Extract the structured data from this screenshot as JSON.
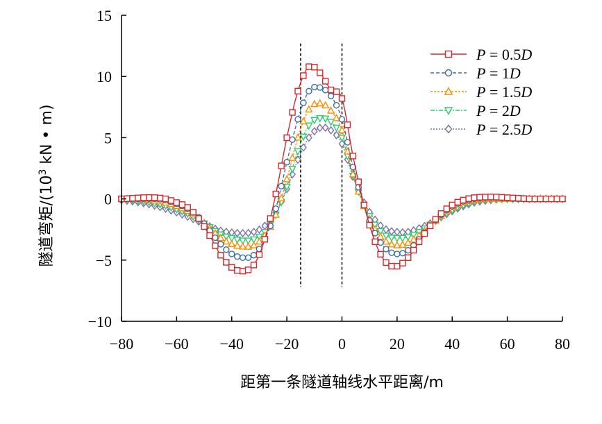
{
  "chart_data": {
    "type": "line",
    "title": "",
    "xlabel": "距第一条隧道轴线水平距离/m",
    "ylabel_main": "隧道弯矩/(10",
    "ylabel_sup": "3",
    "ylabel_tail": " kN • m)",
    "xlim": [
      -80,
      80
    ],
    "ylim": [
      -10,
      15
    ],
    "xticks": [
      -80,
      -60,
      -40,
      -20,
      0,
      20,
      40,
      60,
      80
    ],
    "yticks": [
      -10,
      -5,
      0,
      5,
      10,
      15
    ],
    "xtick_labels": [
      "−80",
      "−60",
      "−40",
      "−20",
      "0",
      "20",
      "40",
      "60",
      "80"
    ],
    "ytick_labels": [
      "−10",
      "−5",
      "0",
      "5",
      "10",
      "15"
    ],
    "vlines": [
      -15,
      0
    ],
    "legend_position": "top-right",
    "grid": false,
    "x": [
      -80,
      -76,
      -72,
      -68,
      -64,
      -60,
      -56,
      -52,
      -48,
      -44,
      -40,
      -36,
      -32,
      -28,
      -24,
      -20,
      -16,
      -12,
      -8,
      -4,
      0,
      4,
      8,
      12,
      16,
      20,
      24,
      28,
      32,
      36,
      40,
      44,
      48,
      52,
      56,
      60,
      64,
      68,
      72,
      76,
      80
    ],
    "series": [
      {
        "name_pre": "P",
        "name_post": " = 0.5",
        "name_unit": "D",
        "color": "#d62728",
        "marker": "square",
        "dash": "",
        "values": [
          0,
          0.05,
          0.1,
          0.1,
          0,
          -0.3,
          -0.7,
          -1.6,
          -3.0,
          -4.6,
          -5.6,
          -5.9,
          -5.4,
          -3.3,
          0.4,
          5.0,
          8.8,
          10.8,
          10.3,
          8.9,
          8.2,
          3.5,
          -0.5,
          -3.5,
          -5.2,
          -5.5,
          -4.8,
          -3.5,
          -2.2,
          -1.2,
          -0.5,
          -0.1,
          0.1,
          0.15,
          0.15,
          0.1,
          0.05,
          0,
          0,
          0,
          0
        ]
      },
      {
        "name_pre": "P",
        "name_post": " = 1",
        "name_unit": "D",
        "color": "#3a6ea5",
        "marker": "circle",
        "dash": "5,3",
        "values": [
          0,
          0,
          0,
          0,
          -0.1,
          -0.4,
          -0.8,
          -1.5,
          -2.6,
          -3.7,
          -4.5,
          -4.8,
          -4.6,
          -3.3,
          -0.8,
          3.0,
          6.5,
          8.8,
          9.1,
          8.4,
          6.5,
          2.6,
          -0.5,
          -2.8,
          -4.1,
          -4.5,
          -4.2,
          -3.3,
          -2.2,
          -1.3,
          -0.6,
          -0.2,
          0,
          0.1,
          0.1,
          0.05,
          0,
          0,
          0,
          0,
          0
        ]
      },
      {
        "name_pre": "P",
        "name_post": " = 1.5",
        "name_unit": "D",
        "color": "#ff8c00",
        "marker": "triangle-up",
        "dash": "3,2",
        "values": [
          0,
          0,
          -0.05,
          -0.15,
          -0.3,
          -0.6,
          -1.0,
          -1.6,
          -2.4,
          -3.2,
          -3.7,
          -3.9,
          -3.8,
          -3.0,
          -1.3,
          1.6,
          5.0,
          7.3,
          7.8,
          7.2,
          5.6,
          2.0,
          -0.6,
          -2.5,
          -3.5,
          -3.8,
          -3.6,
          -3.0,
          -2.2,
          -1.4,
          -0.7,
          -0.3,
          -0.1,
          0,
          0,
          0,
          0,
          0,
          0,
          0,
          0
        ]
      },
      {
        "name_pre": "P",
        "name_post": " = 2",
        "name_unit": "D",
        "color": "#2ecc71",
        "marker": "triangle-down",
        "dash": "6,2,2,2",
        "values": [
          -0.05,
          -0.1,
          -0.2,
          -0.35,
          -0.55,
          -0.85,
          -1.2,
          -1.7,
          -2.3,
          -2.9,
          -3.2,
          -3.4,
          -3.3,
          -2.7,
          -1.3,
          1.0,
          3.9,
          6.0,
          6.6,
          6.3,
          5.0,
          1.9,
          -0.5,
          -2.1,
          -3.0,
          -3.2,
          -3.1,
          -2.7,
          -2.1,
          -1.5,
          -0.9,
          -0.5,
          -0.2,
          -0.05,
          0,
          0,
          0,
          0,
          0,
          0,
          0
        ]
      },
      {
        "name_pre": "P",
        "name_post": " = 2.5",
        "name_unit": "D",
        "color": "#7b6fa8",
        "marker": "diamond",
        "dash": "2,2",
        "values": [
          -0.1,
          -0.2,
          -0.35,
          -0.55,
          -0.8,
          -1.1,
          -1.45,
          -1.85,
          -2.25,
          -2.6,
          -2.75,
          -2.8,
          -2.7,
          -2.2,
          -1.1,
          0.8,
          3.2,
          5.0,
          5.8,
          5.6,
          4.5,
          1.8,
          -0.3,
          -1.7,
          -2.5,
          -2.7,
          -2.7,
          -2.4,
          -2.0,
          -1.5,
          -1.0,
          -0.6,
          -0.3,
          -0.15,
          -0.05,
          0,
          0,
          0,
          0,
          0,
          0
        ]
      }
    ]
  }
}
